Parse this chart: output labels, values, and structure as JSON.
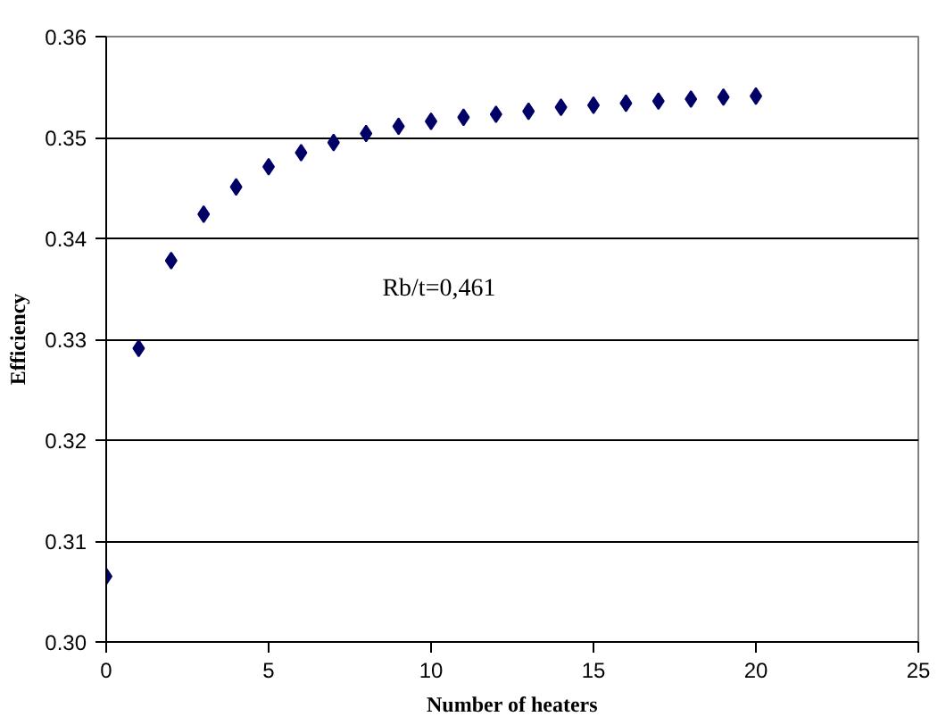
{
  "chart_data": {
    "type": "scatter",
    "xlabel": "Number of heaters",
    "ylabel": "Efficiency",
    "annotations": [
      "Rb/t=0,461"
    ],
    "x": [
      0,
      1,
      2,
      3,
      4,
      5,
      6,
      7,
      8,
      9,
      10,
      11,
      12,
      13,
      14,
      15,
      16,
      17,
      18,
      19,
      20
    ],
    "series": [
      {
        "color": "#000066",
        "values": [
          0.3065,
          0.3291,
          0.3378,
          0.3424,
          0.3451,
          0.3471,
          0.3485,
          0.3495,
          0.3504,
          0.3511,
          0.3516,
          0.352,
          0.3523,
          0.3526,
          0.353,
          0.3532,
          0.3534,
          0.3536,
          0.3538,
          0.354,
          0.3541
        ]
      }
    ],
    "xlim": [
      0,
      25
    ],
    "xticks": [
      0,
      5,
      10,
      15,
      20,
      25
    ],
    "ylim": [
      0.3,
      0.36
    ],
    "yticks": [
      {
        "value": 0.3,
        "label": "0.30"
      },
      0.31,
      0.32,
      0.33,
      0.34,
      0.35,
      0.36
    ],
    "grid": "y",
    "marker": "diamond"
  }
}
